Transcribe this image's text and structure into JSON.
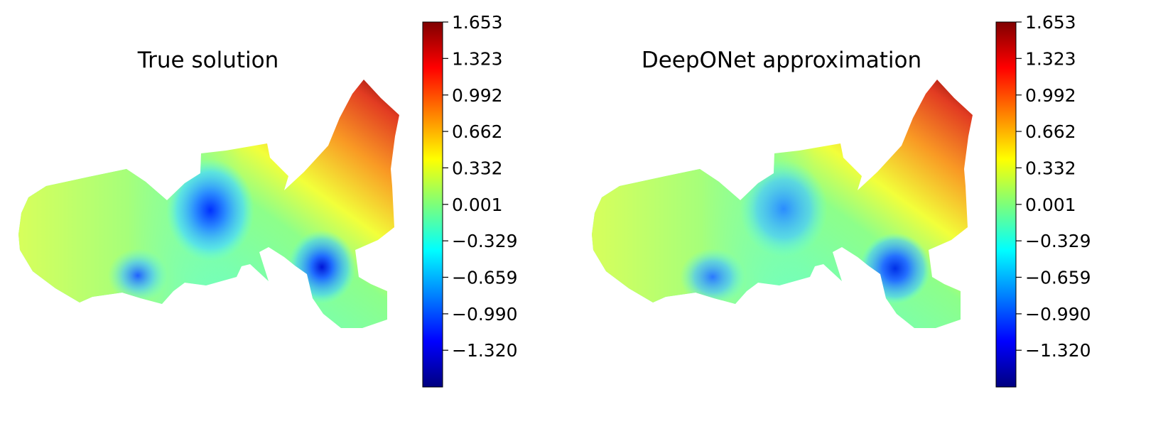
{
  "chart_data": [
    {
      "type": "heatmap",
      "title": "True solution",
      "colormap": "jet",
      "colorbar": {
        "min": -1.653,
        "max": 1.653,
        "ticks": [
          1.653,
          1.323,
          0.992,
          0.662,
          0.332,
          0.001,
          -0.329,
          -0.659,
          -0.99,
          -1.32
        ],
        "tick_labels": [
          "1.653",
          "1.323",
          "0.992",
          "0.662",
          "0.332",
          "0.001",
          "−0.329",
          "−0.659",
          "−0.990",
          "−1.320"
        ]
      },
      "axes_visible": false
    },
    {
      "type": "heatmap",
      "title": "DeepONet approximation",
      "colormap": "jet",
      "colorbar": {
        "min": -1.653,
        "max": 1.653,
        "ticks": [
          1.653,
          1.323,
          0.992,
          0.662,
          0.332,
          0.001,
          -0.329,
          -0.659,
          -0.99,
          -1.32
        ],
        "tick_labels": [
          "1.653",
          "1.323",
          "0.992",
          "0.662",
          "0.332",
          "0.001",
          "−0.329",
          "−0.659",
          "−0.990",
          "−1.320"
        ]
      },
      "axes_visible": false
    }
  ]
}
